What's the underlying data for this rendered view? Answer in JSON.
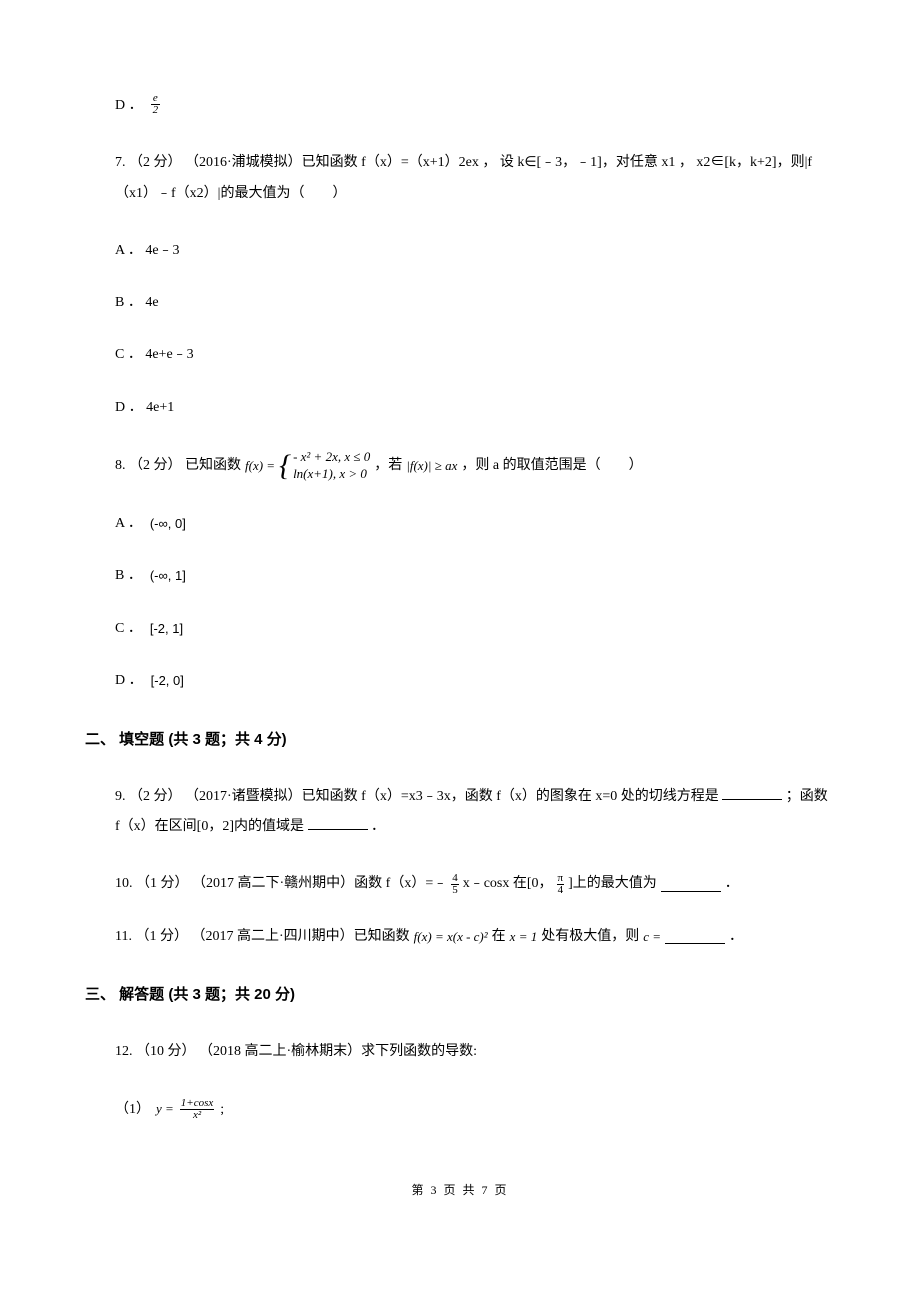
{
  "q6": {
    "optD": {
      "label": "D ．",
      "frac_num": "e",
      "frac_den": "2"
    }
  },
  "q7": {
    "text": "7. （2 分） （2016·浦城模拟）已知函数 f（x）=（x+1）2ex ， 设 k∈[﹣3，﹣1]，对任意 x1 ， x2∈[k，k+2]，则|f（x1）﹣f（x2）|的最大值为（　　）",
    "optA": "A ． 4e﹣3",
    "optB": "B ． 4e",
    "optC": "C ． 4e+e﹣3",
    "optD": "D ． 4e+1"
  },
  "q8": {
    "prefix": "8. （2 分） 已知函数",
    "fx": "f(x) =",
    "case1": "- x² + 2x, x ≤ 0",
    "case2": "ln(x+1), x > 0",
    "mid1": "，若",
    "cond": "|f(x)| ≥ ax",
    "suffix": "，则 a 的取值范围是（　　）",
    "optA": "A ．",
    "intA": "(-∞, 0]",
    "optB": "B ．",
    "intB": "(-∞, 1]",
    "optC": "C ．",
    "intC": "[-2, 1]",
    "optD": "D ．",
    "intD": "[-2, 0]"
  },
  "section2": "二、 填空题 (共 3 题；共 4 分)",
  "q9": {
    "text1": "9. （2 分） （2017·诸暨模拟）已知函数 f（x）=x3﹣3x，函数 f（x）的图象在 x=0 处的切线方程是",
    "text2": "；函数 f（x）在区间[0，2]内的值域是",
    "text3": "．"
  },
  "q10": {
    "prefix": "10. （1 分） （2017 高二下·赣州期中）函数 f（x）=﹣  ",
    "frac1_n": "4",
    "frac1_d": "5",
    "mid": " x﹣cosx 在[0，  ",
    "frac2_n": "π",
    "frac2_d": "4",
    "suffix": " ]上的最大值为",
    "end": "．"
  },
  "q11": {
    "prefix": "11. （1 分） （2017 高二上·四川期中）已知函数 ",
    "expr": "f(x) = x(x - c)²",
    "mid": " 在 ",
    "xval": "x = 1",
    "suffix": " 处有极大值，则 ",
    "cvar": "c =  ",
    "end": "．"
  },
  "section3": "三、 解答题 (共 3 题；共 20 分)",
  "q12": {
    "text": "12. （10 分） （2018 高二上·榆林期末）求下列函数的导数:",
    "sub1_label": "（1）",
    "sub1_y": "y = ",
    "sub1_num": "1+cosx",
    "sub1_den": "x²",
    "sub1_end": " ;"
  },
  "footer": "第 3 页 共 7 页"
}
